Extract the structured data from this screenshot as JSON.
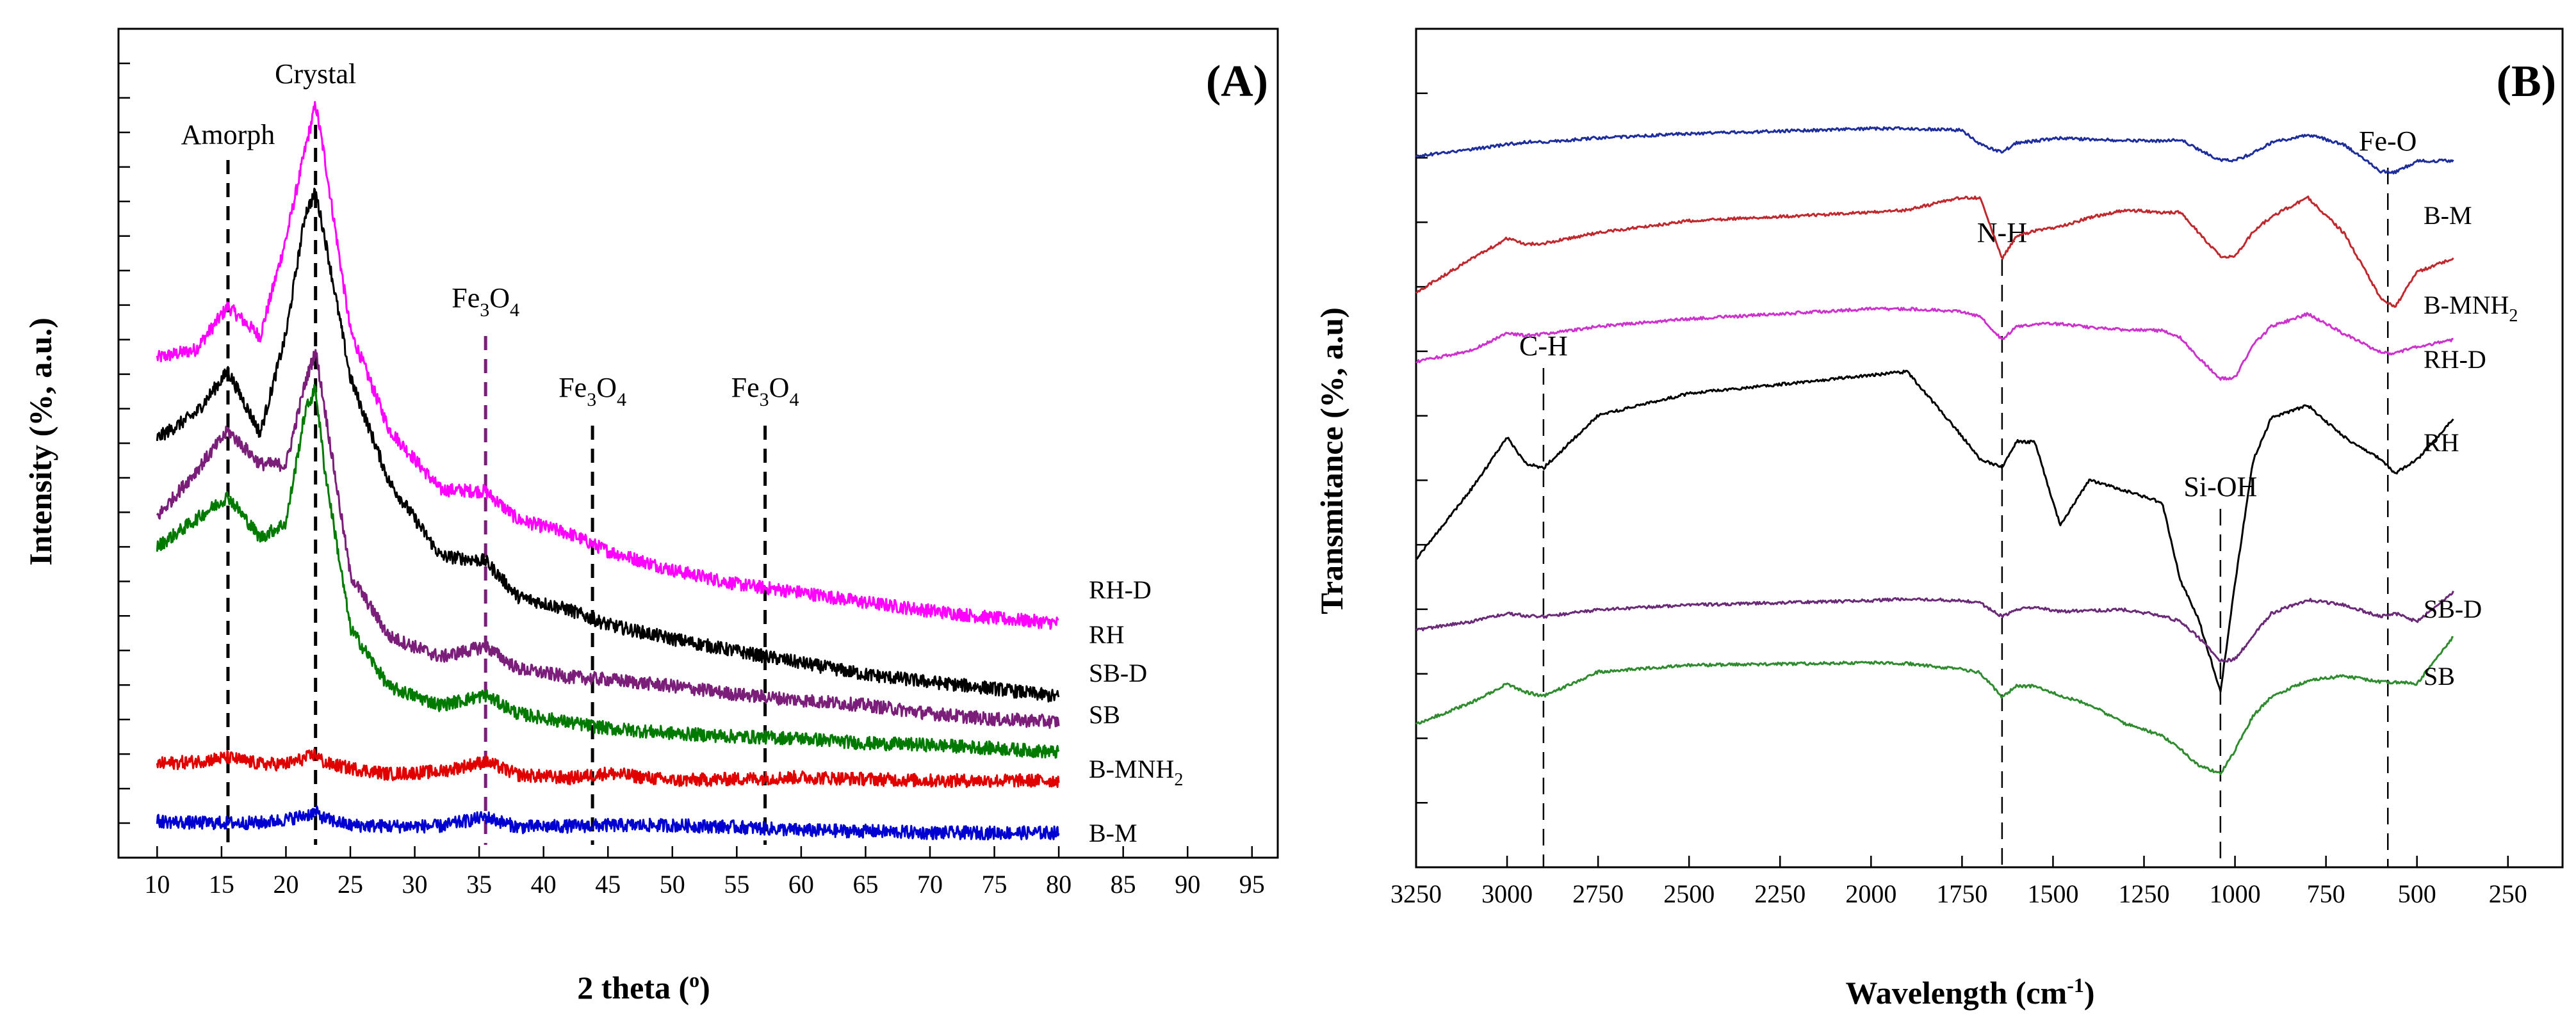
{
  "chart_data": [
    {
      "panel": "(A)",
      "type": "line",
      "title": "",
      "xlabel": "2 theta (°)",
      "ylabel": "Intensity (%, a.u.)",
      "xlim": [
        7,
        97
      ],
      "ylim": [
        0,
        100
      ],
      "xticks": [
        10,
        15,
        20,
        25,
        30,
        35,
        40,
        45,
        50,
        55,
        60,
        65,
        70,
        75,
        80,
        85,
        90,
        95
      ],
      "y_tick_labels": false,
      "grid": false,
      "x": [
        10,
        13,
        15.5,
        18,
        20,
        21.5,
        22.3,
        23,
        25,
        28,
        32,
        35.5,
        38,
        42,
        45,
        50,
        55,
        60,
        65,
        70,
        75,
        80
      ],
      "series": [
        {
          "name": "RH-D",
          "color": "#ff00ff",
          "values": [
            60.3,
            61.3,
            66.5,
            62.9,
            74.6,
            85.5,
            90.9,
            84.5,
            63.6,
            51.7,
            44.4,
            44.2,
            40.8,
            39.1,
            37.0,
            34.7,
            33.0,
            32.0,
            30.8,
            29.8,
            28.9,
            28.3
          ]
        },
        {
          "name": "RH",
          "color": "#000000",
          "values": [
            50.6,
            53.6,
            58.7,
            51.2,
            63.1,
            77.7,
            80.3,
            75.0,
            57.9,
            45.4,
            36.4,
            35.8,
            31.5,
            29.9,
            28.1,
            26.4,
            24.9,
            23.5,
            22.1,
            21.2,
            20.4,
            19.4
          ]
        },
        {
          "name": "SB-D",
          "color": "#7b1e7a",
          "values": [
            41.1,
            46.6,
            51.5,
            47.5,
            47.4,
            57.3,
            61.2,
            54.3,
            34.1,
            26.7,
            24.2,
            25.5,
            22.8,
            21.8,
            21.5,
            20.7,
            19.7,
            19.0,
            18.4,
            17.4,
            16.7,
            16.4
          ]
        },
        {
          "name": "SB",
          "color": "#007a00",
          "values": [
            37.5,
            40.8,
            43.6,
            38.6,
            40.4,
            53.9,
            56.6,
            47.0,
            27.7,
            20.6,
            18.4,
            19.6,
            17.4,
            16.3,
            15.6,
            15.0,
            14.6,
            14.4,
            13.8,
            13.6,
            13.2,
            12.7
          ]
        },
        {
          "name": "B-MNH2",
          "color": "#e00000",
          "values": [
            11.3,
            11.6,
            12.1,
            11.3,
            11.3,
            12.0,
            12.5,
            11.4,
            10.8,
            10.1,
            10.4,
            11.6,
            10.0,
            9.6,
            10.2,
            9.3,
            9.5,
            9.7,
            9.5,
            9.3,
            9.3,
            9.3
          ]
        },
        {
          "name": "B-M",
          "color": "#0000d0",
          "values": [
            4.4,
            4.2,
            4.2,
            4.2,
            4.6,
            5.1,
            5.5,
            4.7,
            3.9,
            3.8,
            3.8,
            4.9,
            3.7,
            3.8,
            3.9,
            3.9,
            3.7,
            3.3,
            3.2,
            3.0,
            3.0,
            3.0
          ]
        }
      ],
      "annotations": [
        {
          "text": "Amorph",
          "x": 15.5
        },
        {
          "text": "Crystal",
          "x": 22.3
        },
        {
          "text": "Fe3O4",
          "x": 35.5
        },
        {
          "text": "Fe3O4",
          "x": 43.8
        },
        {
          "text": "Fe3O4",
          "x": 57.2
        }
      ]
    },
    {
      "panel": "(B)",
      "type": "line",
      "title": "",
      "xlabel": "Wavelength (cm⁻¹)",
      "ylabel": "Transmitance (%, a.u)",
      "xlim": [
        3250,
        100
      ],
      "ylim": [
        0,
        100
      ],
      "xticks": [
        3250,
        3000,
        2750,
        2500,
        2250,
        2000,
        1750,
        1500,
        1250,
        1000,
        750,
        500,
        250
      ],
      "y_tick_labels": false,
      "grid": false,
      "x": [
        3250,
        3100,
        3000,
        2950,
        2900,
        2750,
        2500,
        2000,
        1900,
        1750,
        1700,
        1640,
        1600,
        1550,
        1480,
        1400,
        1300,
        1200,
        1150,
        1100,
        1040,
        1000,
        950,
        900,
        800,
        700,
        600,
        560,
        500,
        400
      ],
      "series": [
        {
          "name": "B-M",
          "color": "#1e2d9c",
          "values": [
            84.8,
            85.6,
            86.2,
            86.5,
            86.5,
            87.0,
            87.5,
            88.1,
            88.1,
            87.9,
            86.2,
            85.3,
            86.4,
            86.6,
            87.0,
            86.8,
            86.7,
            86.6,
            86.8,
            85.6,
            84.3,
            84.3,
            85.2,
            86.4,
            87.4,
            86.2,
            83.0,
            82.9,
            84.2,
            84.3
          ]
        },
        {
          "name": "B-MNH2",
          "color": "#c0282d",
          "values": [
            68.6,
            72.5,
            75.0,
            74.3,
            74.4,
            75.7,
            77.1,
            78.1,
            78.4,
            79.9,
            79.8,
            72.6,
            75.3,
            75.9,
            76.4,
            77.5,
            78.4,
            78.1,
            78.1,
            75.7,
            72.8,
            72.8,
            75.8,
            77.6,
            79.9,
            75.6,
            67.9,
            66.8,
            71.0,
            72.6
          ]
        },
        {
          "name": "RH-D",
          "color": "#cc33cc",
          "values": [
            60.3,
            61.6,
            63.7,
            63.4,
            63.6,
            64.5,
            65.4,
            66.6,
            66.6,
            66.3,
            65.7,
            62.9,
            64.5,
            64.8,
            64.8,
            64.4,
            64.1,
            64.0,
            63.2,
            60.7,
            58.3,
            58.4,
            62.3,
            64.5,
            66.0,
            63.6,
            61.4,
            61.3,
            62.1,
            62.9
          ]
        },
        {
          "name": "RH",
          "color": "#000000",
          "values": [
            36.7,
            45.0,
            51.3,
            48.2,
            47.6,
            53.9,
            56.5,
            58.7,
            59.1,
            51.4,
            48.7,
            47.7,
            50.8,
            50.7,
            40.8,
            46.2,
            44.9,
            43.5,
            34.2,
            29.6,
            20.9,
            33.8,
            48.6,
            53.6,
            55.1,
            51.3,
            48.7,
            47.0,
            48.6,
            53.5
          ]
        },
        {
          "name": "SB-D",
          "color": "#6b2a78",
          "values": [
            28.3,
            29.3,
            30.3,
            30.0,
            29.9,
            30.7,
            31.3,
            31.8,
            32.0,
            31.8,
            31.5,
            29.9,
            30.8,
            31.0,
            30.5,
            30.6,
            30.7,
            30.0,
            29.3,
            27.4,
            24.6,
            24.8,
            27.6,
            30.3,
            31.9,
            31.3,
            29.9,
            30.3,
            29.3,
            32.8
          ]
        },
        {
          "name": "SB",
          "color": "#2e8b2e",
          "values": [
            17.1,
            19.6,
            21.9,
            20.9,
            20.4,
            23.3,
            24.1,
            24.4,
            24.3,
            23.6,
            23.2,
            20.3,
            21.6,
            21.6,
            20.5,
            19.4,
            17.1,
            15.7,
            14.1,
            12.1,
            11.2,
            13.9,
            18.1,
            20.3,
            22.3,
            22.8,
            22.1,
            22.1,
            21.9,
            27.5
          ]
        }
      ],
      "annotations": [
        {
          "text": "C-H",
          "x": 2900
        },
        {
          "text": "N-H",
          "x": 1640
        },
        {
          "text": "Si-OH",
          "x": 1040
        },
        {
          "text": "Fe-O",
          "x": 580
        }
      ]
    }
  ]
}
